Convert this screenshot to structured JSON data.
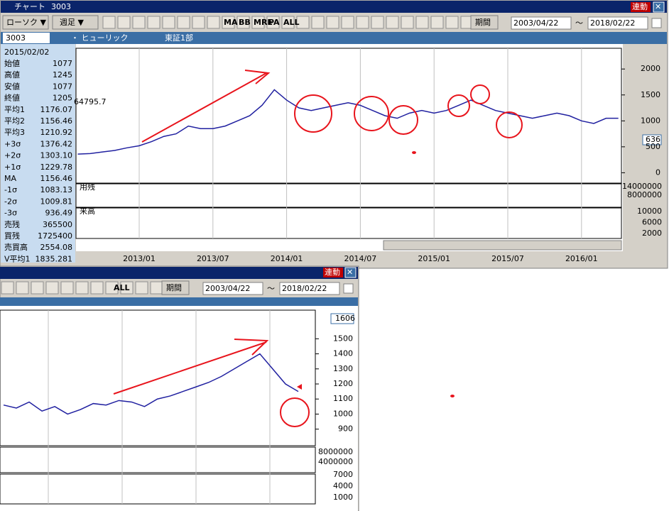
{
  "main_window": {
    "title": "チャート",
    "code_title": "3003",
    "link_button": "連動",
    "chart_type_select": "ローソク ▼",
    "period_select": "週足 ▼",
    "icon_labels": [
      "MA",
      "BB",
      "MRE",
      "PA",
      "ALL"
    ],
    "range_button": "期間",
    "date_from": "2003/04/22",
    "date_sep": "～",
    "date_to": "2018/02/22",
    "code": "3003",
    "company": "・ ヒューリック",
    "market": "東証1部",
    "info_date": "2015/02/02",
    "info_rows": [
      [
        "始値",
        "1077"
      ],
      [
        "高値",
        "1245"
      ],
      [
        "安値",
        "1077"
      ],
      [
        "終値",
        "1205"
      ],
      [
        "平均1",
        "1176.07"
      ],
      [
        "平均2",
        "1156.46"
      ],
      [
        "平均3",
        "1210.92"
      ],
      [
        "+3σ",
        "1376.42"
      ],
      [
        "+2σ",
        "1303.10"
      ],
      [
        "+1σ",
        "1229.78"
      ],
      [
        "MA",
        "1156.46"
      ],
      [
        "-1σ",
        "1083.13"
      ],
      [
        "-2σ",
        "1009.81"
      ],
      [
        "-3σ",
        "936.49"
      ],
      [
        "売残",
        "365500"
      ],
      [
        "買残",
        "1725400"
      ],
      [
        "売買高",
        "2554.08"
      ],
      [
        "V平均1",
        "1835.281"
      ]
    ],
    "cursor_value": "64795.7",
    "price_marker": "636",
    "margin_panel_label": "用残",
    "margin_ticks": [
      "14000000",
      "8000000"
    ],
    "volume_panel_label": "来高",
    "volume_ticks": [
      "10000",
      "6000",
      "2000"
    ],
    "chart_data": {
      "type": "line",
      "color": "#2020a0",
      "x": [
        "2012/08",
        "2012/09",
        "2012/10",
        "2012/11",
        "2012/12",
        "2013/01",
        "2013/02",
        "2013/03",
        "2013/04",
        "2013/05",
        "2013/06",
        "2013/07",
        "2013/08",
        "2013/09",
        "2013/10",
        "2013/11",
        "2013/12",
        "2014/01",
        "2014/02",
        "2014/03",
        "2014/04",
        "2014/05",
        "2014/06",
        "2014/07",
        "2014/08",
        "2014/09",
        "2014/10",
        "2014/11",
        "2014/12",
        "2015/01",
        "2015/02",
        "2015/03",
        "2015/04",
        "2015/05",
        "2015/06",
        "2015/07",
        "2015/08",
        "2015/09",
        "2015/10",
        "2015/11",
        "2015/12",
        "2016/01",
        "2016/02",
        "2016/03",
        "2016/04"
      ],
      "values": [
        360,
        370,
        400,
        430,
        480,
        520,
        600,
        700,
        750,
        900,
        850,
        850,
        900,
        1000,
        1100,
        1300,
        1600,
        1400,
        1250,
        1200,
        1250,
        1300,
        1350,
        1300,
        1200,
        1100,
        1050,
        1150,
        1200,
        1150,
        1200,
        1300,
        1400,
        1300,
        1200,
        1150,
        1100,
        1050,
        1100,
        1150,
        1100,
        1000,
        950,
        1050,
        1050
      ],
      "xticks": [
        "2013/01",
        "2013/07",
        "2014/01",
        "2014/07",
        "2015/01",
        "2015/07",
        "2016/01"
      ],
      "ylim": [
        -200,
        2400
      ],
      "yticks": [
        0,
        500,
        1000,
        1500,
        2000
      ]
    }
  },
  "sub_window": {
    "link_button": "連動",
    "icon_labels": [
      "ALL"
    ],
    "range_button": "期間",
    "date_from": "2003/04/22",
    "date_sep": "～",
    "date_to": "2018/02/22",
    "price_marker": "1606",
    "margin_ticks": [
      "8000000",
      "4000000"
    ],
    "volume_ticks": [
      "7000",
      "4000",
      "1000"
    ],
    "chart_data": {
      "type": "line",
      "color": "#2020a0",
      "values": [
        1060,
        1040,
        1080,
        1020,
        1050,
        1000,
        1030,
        1070,
        1060,
        1090,
        1080,
        1050,
        1100,
        1120,
        1150,
        1180,
        1210,
        1250,
        1300,
        1350,
        1400,
        1300,
        1200,
        1150
      ],
      "ylim": [
        790,
        1690
      ],
      "yticks": [
        900,
        1000,
        1100,
        1200,
        1300,
        1400,
        1500
      ]
    }
  }
}
